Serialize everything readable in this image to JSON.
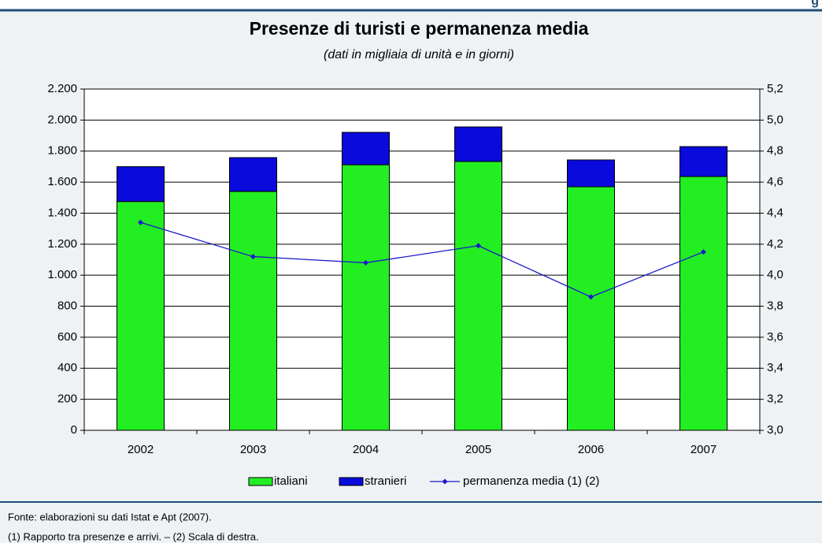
{
  "header_fragment": "g",
  "chart_data": {
    "type": "bar",
    "stacked": true,
    "title": "Presenze di turisti e permanenza media",
    "subtitle": "(dati in migliaia di unità e in giorni)",
    "categories": [
      "2002",
      "2003",
      "2004",
      "2005",
      "2006",
      "2007"
    ],
    "series": [
      {
        "name": "italiani",
        "type": "bar",
        "color": "#22ee22",
        "values": [
          1475,
          1540,
          1712,
          1733,
          1570,
          1636
        ]
      },
      {
        "name": "stranieri",
        "type": "bar",
        "color": "#0a0adc",
        "values": [
          225,
          218,
          209,
          223,
          173,
          193
        ]
      },
      {
        "name": "permanenza media (1) (2)",
        "type": "line",
        "axis": "y2",
        "color": "#1a1acc",
        "values": [
          4.34,
          4.12,
          4.08,
          4.19,
          3.86,
          4.15
        ]
      }
    ],
    "ylim": [
      0,
      2200
    ],
    "yticks": [
      0,
      200,
      400,
      600,
      800,
      {
        "value": 1000,
        "label": "1.000"
      },
      {
        "value": 1200,
        "label": "1.200"
      },
      {
        "value": 1400,
        "label": "1.400"
      },
      {
        "value": 1600,
        "label": "1.600"
      },
      {
        "value": 1800,
        "label": "1.800"
      },
      {
        "value": 2000,
        "label": "2.000"
      },
      {
        "value": 2200,
        "label": "2.200"
      }
    ],
    "y2lim": [
      3.0,
      5.2
    ],
    "y2ticks": [
      {
        "value": 3.0,
        "label": "3,0"
      },
      {
        "value": 3.2,
        "label": "3,2"
      },
      {
        "value": 3.4,
        "label": "3,4"
      },
      {
        "value": 3.6,
        "label": "3,6"
      },
      {
        "value": 3.8,
        "label": "3,8"
      },
      {
        "value": 4.0,
        "label": "4,0"
      },
      {
        "value": 4.2,
        "label": "4,2"
      },
      {
        "value": 4.4,
        "label": "4,4"
      },
      {
        "value": 4.6,
        "label": "4,6"
      },
      {
        "value": 4.8,
        "label": "4,8"
      },
      {
        "value": 5.0,
        "label": "5,0"
      },
      {
        "value": 5.2,
        "label": "5,2"
      }
    ],
    "grid": true,
    "legend": "bottom"
  },
  "notes": [
    "Fonte: elaborazioni su dati Istat e Apt (2007).",
    "(1) Rapporto tra presenze e arrivi. – (2) Scala di destra."
  ]
}
